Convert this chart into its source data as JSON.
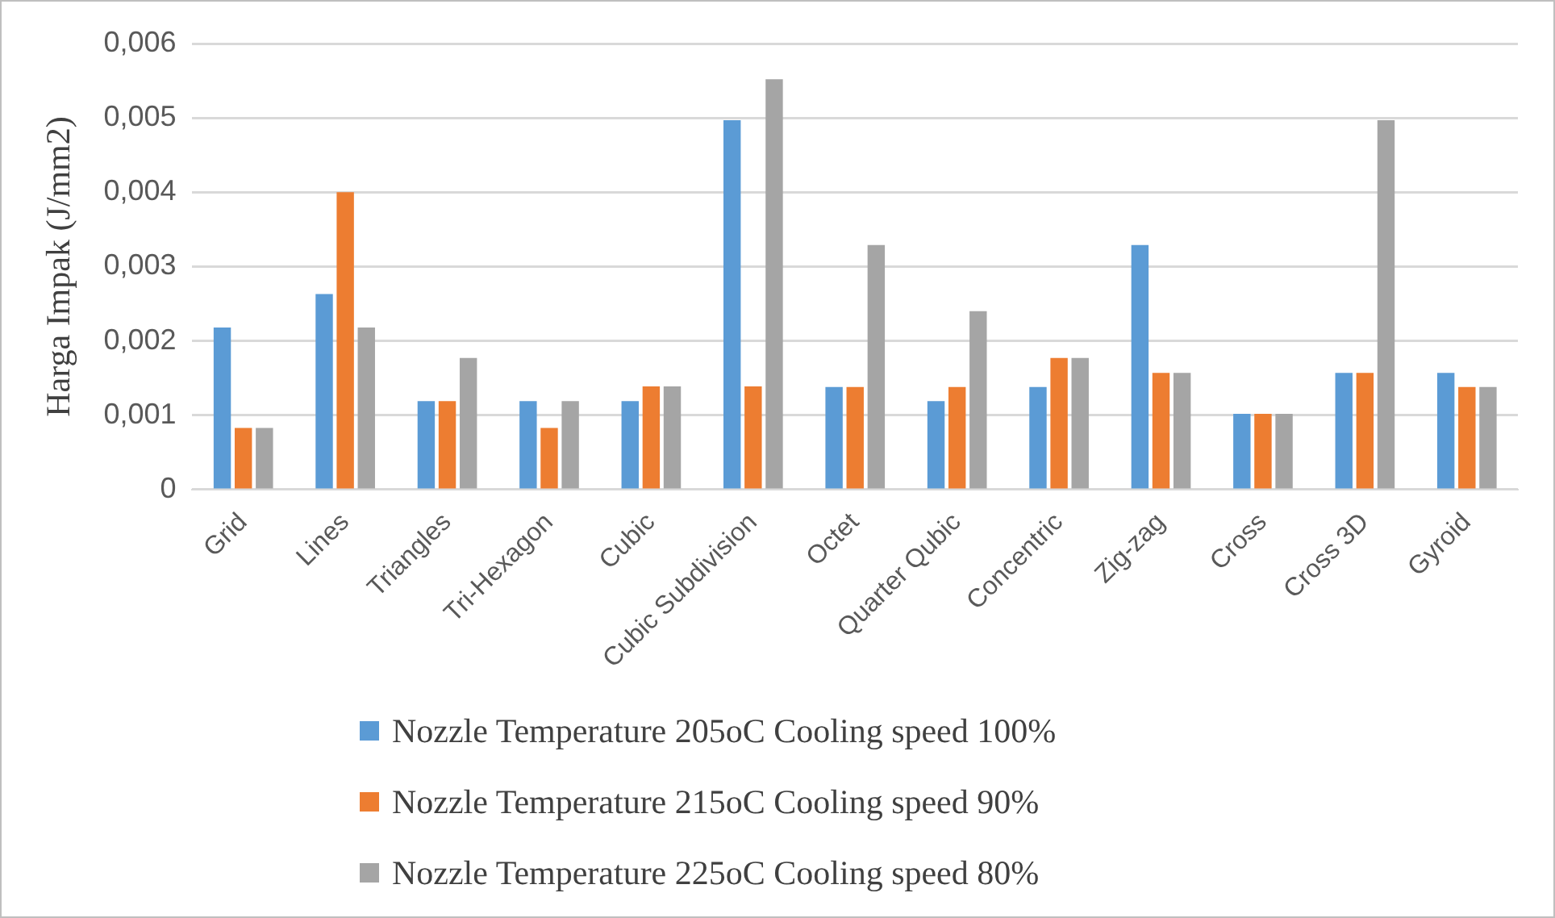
{
  "chart_data": {
    "type": "bar",
    "ylabel": "Harga Impak (J/mm2)",
    "categories": [
      "Grid",
      "Lines",
      "Triangles",
      "Tri-Hexagon",
      "Cubic",
      "Cubic Subdivision",
      "Octet",
      "Quarter Qubic",
      "Concentric",
      "Zig-zag",
      "Cross",
      "Cross 3D",
      "Gyroid"
    ],
    "series": [
      {
        "name": "Nozzle Temperature 205oC Cooling speed 100%",
        "color": "#5b9bd5",
        "values": [
          0.00218,
          0.00263,
          0.00119,
          0.00119,
          0.00119,
          0.00497,
          0.00138,
          0.00119,
          0.00138,
          0.00329,
          0.00102,
          0.00157,
          0.00157
        ]
      },
      {
        "name": "Nozzle Temperature 215oC Cooling speed 90%",
        "color": "#ed7d31",
        "values": [
          0.00083,
          0.004,
          0.00119,
          0.00083,
          0.00139,
          0.00139,
          0.00138,
          0.00138,
          0.00177,
          0.00157,
          0.00102,
          0.00157,
          0.00138
        ]
      },
      {
        "name": "Nozzle Temperature 225oC Cooling speed 80%",
        "color": "#a5a5a5",
        "values": [
          0.00083,
          0.00218,
          0.00177,
          0.00119,
          0.00139,
          0.00552,
          0.00329,
          0.0024,
          0.00177,
          0.00157,
          0.00102,
          0.00497,
          0.00138
        ]
      }
    ],
    "ylim": [
      0,
      0.006
    ],
    "yticks": [
      {
        "value": 0,
        "label": "0"
      },
      {
        "value": 0.001,
        "label": "0,001"
      },
      {
        "value": 0.002,
        "label": "0,002"
      },
      {
        "value": 0.003,
        "label": "0,003"
      },
      {
        "value": 0.004,
        "label": "0,004"
      },
      {
        "value": 0.005,
        "label": "0,005"
      },
      {
        "value": 0.006,
        "label": "0,006"
      }
    ],
    "grid": "y",
    "legend": "bottom"
  }
}
